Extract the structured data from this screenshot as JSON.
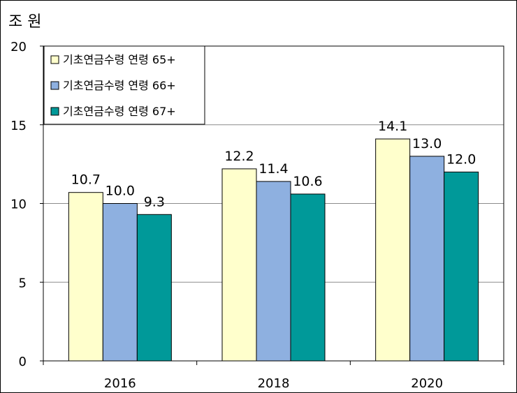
{
  "chart_data": {
    "type": "bar",
    "unit_label": "조 원",
    "categories": [
      "2016",
      "2018",
      "2020"
    ],
    "series": [
      {
        "name": "기초연금수령 연령 65+",
        "values": [
          10.7,
          12.2,
          14.1
        ],
        "color": "#FFFFCC"
      },
      {
        "name": "기초연금수령 연령 66+",
        "values": [
          10.0,
          11.4,
          13.0
        ],
        "color": "#8EB0E0"
      },
      {
        "name": "기초연금수령 연령 67+",
        "values": [
          9.3,
          10.6,
          12.0
        ],
        "color": "#009999"
      }
    ],
    "data_labels": [
      [
        "10.7",
        "10.0",
        "9.3"
      ],
      [
        "12.2",
        "11.4",
        "10.6"
      ],
      [
        "14.1",
        "13.0",
        "12.0"
      ]
    ],
    "ylim": [
      0,
      20
    ],
    "yticks": [
      "0",
      "5",
      "10",
      "15",
      "20"
    ],
    "grid": true,
    "legend_position": "top-left"
  }
}
